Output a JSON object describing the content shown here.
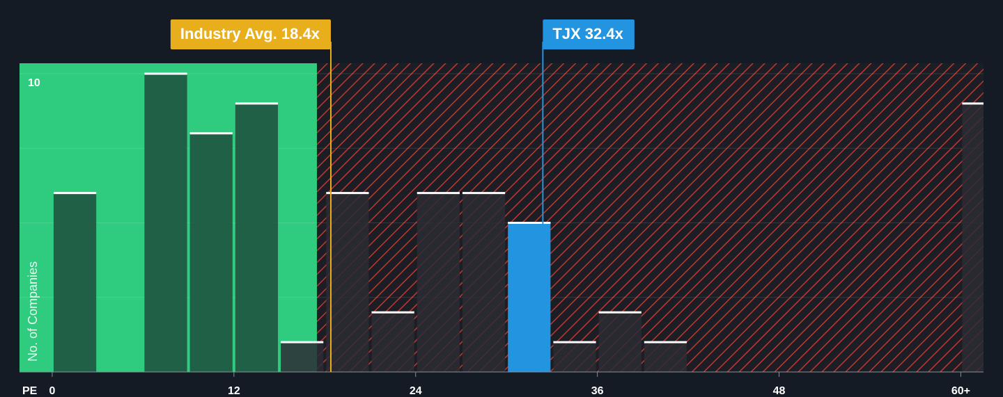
{
  "chart_data": {
    "type": "histogram",
    "x_label": "PE",
    "y_label": "No. of Companies",
    "bins": [
      0,
      3,
      6,
      9,
      12,
      15,
      18,
      21,
      24,
      27,
      30,
      33,
      36,
      39,
      42,
      45,
      48,
      51,
      54,
      57,
      60,
      63
    ],
    "values": [
      6,
      0,
      10,
      8,
      9,
      1,
      6,
      2,
      6,
      6,
      5,
      1,
      2,
      1,
      0,
      0,
      0,
      0,
      0,
      0,
      9
    ],
    "xlim": [
      -2.16,
      61.5
    ],
    "ylim": [
      0,
      10.35
    ],
    "xticks": [
      0,
      12,
      24,
      36,
      48,
      {
        "value": 60,
        "label": "60+"
      }
    ],
    "yticks": [
      {
        "value": 2.5,
        "label": null
      },
      {
        "value": 5,
        "label": null
      },
      {
        "value": 7.5,
        "label": null
      },
      10
    ],
    "grid": true,
    "annotations": [
      {
        "label": "Industry Avg. 18.4x",
        "value": 18.4,
        "color": "#e8ae1c"
      },
      {
        "label": "TJX 32.4x",
        "value": 32.4,
        "color": "#2394e0"
      }
    ],
    "colors": {
      "fair": "#2fcb7f",
      "fair_bar": "#1d4d3c",
      "over_bar": "#2b2b35",
      "hatch": "#c0392b",
      "highlight": "#2394e0"
    }
  }
}
